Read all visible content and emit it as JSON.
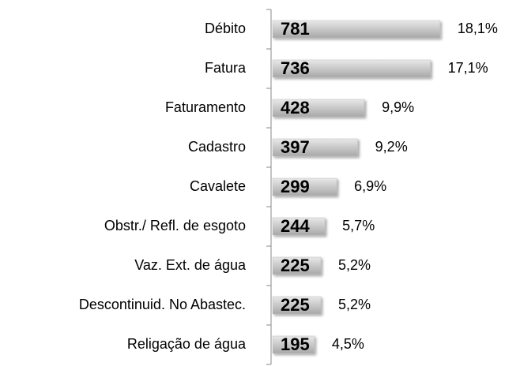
{
  "chart_data": {
    "type": "barh",
    "categories": [
      "Débito",
      "Fatura",
      "Faturamento",
      "Cadastro",
      "Cavalete",
      "Obstr./ Refl. de esgoto",
      "Vaz. Ext. de água",
      "Descontinuid. No Abastec.",
      "Religação de água"
    ],
    "values": [
      781,
      736,
      428,
      397,
      299,
      244,
      225,
      225,
      195
    ],
    "percent_labels": [
      "18,1%",
      "17,1%",
      "9,9%",
      "9,2%",
      "6,9%",
      "5,7%",
      "5,2%",
      "5,2%",
      "4,5%"
    ],
    "color": "#bfbfbf",
    "xlim": [
      0,
      800
    ]
  }
}
